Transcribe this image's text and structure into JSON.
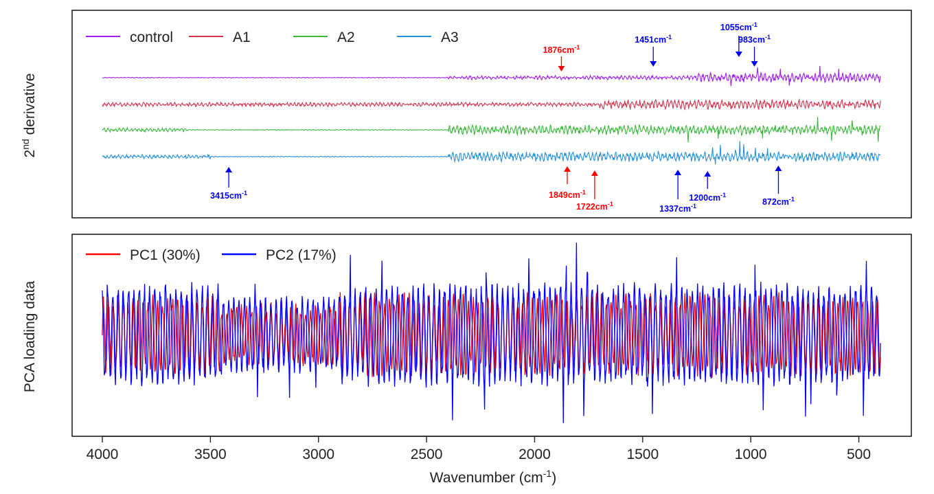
{
  "chart_data": [
    {
      "type": "line",
      "panel": "top",
      "ylabel_main": "2",
      "ylabel_sup": "nd",
      "ylabel_rest": " derivative",
      "xlim": [
        4000,
        400
      ],
      "x_reversed": true,
      "legend_position": "top-left",
      "series": [
        {
          "name": "control",
          "color": "#a020f0",
          "offset_rank": 0,
          "quiet_regions": [
            [
              4000,
              2400
            ]
          ],
          "strong_regions": [
            [
              1250,
              400
            ]
          ]
        },
        {
          "name": "A1",
          "color": "#d2354f",
          "offset_rank": 1,
          "quiet_regions": [],
          "strong_regions": [
            [
              1700,
              400
            ]
          ]
        },
        {
          "name": "A2",
          "color": "#3cb93c",
          "offset_rank": 2,
          "quiet_regions": [
            [
              3600,
              2400
            ]
          ],
          "strong_regions": [
            [
              2400,
              400
            ]
          ]
        },
        {
          "name": "A3",
          "color": "#2591d8",
          "offset_rank": 3,
          "quiet_regions": [
            [
              3500,
              2400
            ]
          ],
          "strong_regions": [
            [
              2400,
              400
            ]
          ]
        }
      ],
      "annotations": [
        {
          "label": "1876",
          "unit": "cm",
          "exp": "-1",
          "wavenumber": 1876,
          "color": "#ff0000",
          "direction": "down",
          "series": "control"
        },
        {
          "label": "1451",
          "unit": "cm",
          "exp": "-1",
          "wavenumber": 1451,
          "color": "#0000ee",
          "direction": "down",
          "series": "control"
        },
        {
          "label": "1055",
          "unit": "cm",
          "exp": "-1",
          "wavenumber": 1055,
          "color": "#0000ee",
          "direction": "down",
          "series": "control"
        },
        {
          "label": "983",
          "unit": "cm",
          "exp": "-1",
          "wavenumber": 983,
          "color": "#0000ee",
          "direction": "down",
          "series": "control"
        },
        {
          "label": "3415",
          "unit": "cm",
          "exp": "-1",
          "wavenumber": 3415,
          "color": "#0000ee",
          "direction": "up",
          "series": "A3"
        },
        {
          "label": "1849",
          "unit": "cm",
          "exp": "-1",
          "wavenumber": 1849,
          "color": "#ff0000",
          "direction": "up",
          "series": "A3"
        },
        {
          "label": "1722",
          "unit": "cm",
          "exp": "-1",
          "wavenumber": 1722,
          "color": "#ff0000",
          "direction": "up",
          "series": "A3"
        },
        {
          "label": "1337",
          "unit": "cm",
          "exp": "-1",
          "wavenumber": 1337,
          "color": "#0000ee",
          "direction": "up",
          "series": "A3"
        },
        {
          "label": "1200",
          "unit": "cm",
          "exp": "-1",
          "wavenumber": 1200,
          "color": "#0000ee",
          "direction": "up",
          "series": "A3"
        },
        {
          "label": "872",
          "unit": "cm",
          "exp": "-1",
          "wavenumber": 872,
          "color": "#0000ee",
          "direction": "up",
          "series": "A3"
        }
      ]
    },
    {
      "type": "line",
      "panel": "bottom",
      "ylabel": "PCA loading data",
      "xlabel_main": "Wavenumber (cm",
      "xlabel_sup": "-1",
      "xlabel_end": ")",
      "xlim": [
        4000,
        400
      ],
      "x_reversed": true,
      "xticks": [
        4000,
        3500,
        3000,
        2500,
        2000,
        1500,
        1000,
        500
      ],
      "xtick_labels": [
        "4000",
        "3500",
        "3000",
        "2500",
        "2000",
        "1500",
        "1000",
        "500"
      ],
      "ylim": [
        -1.3,
        1.3
      ],
      "legend_position": "top-left",
      "series": [
        {
          "name": "PC1 (30%)",
          "color": "#ff0000",
          "amplitude": 0.5,
          "draw_order": 0
        },
        {
          "name": "PC2 (17%)",
          "color": "#0000ff",
          "amplitude": 0.65,
          "draw_order": 1
        }
      ]
    }
  ]
}
